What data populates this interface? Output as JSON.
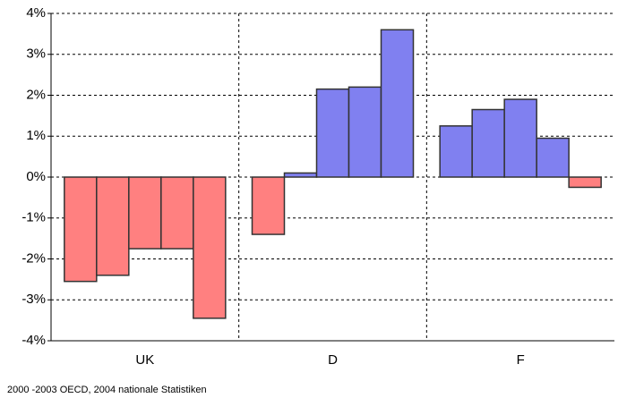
{
  "chart_data": {
    "type": "grouped-bar",
    "groups": [
      {
        "label": "UK",
        "values": [
          -2.55,
          -2.4,
          -1.75,
          -1.75,
          -3.45
        ]
      },
      {
        "label": "D",
        "values": [
          -1.4,
          0.1,
          2.15,
          2.2,
          3.6
        ]
      },
      {
        "label": "F",
        "values": [
          1.25,
          1.65,
          1.9,
          0.95,
          -0.25
        ]
      }
    ],
    "positive_color": "#8080f0",
    "negative_color": "#ff8080",
    "ylim": [
      -4,
      4
    ],
    "yticks": [
      {
        "value": -4,
        "label": "-4%"
      },
      {
        "value": -3,
        "label": "-3%"
      },
      {
        "value": -2,
        "label": "-2%"
      },
      {
        "value": -1,
        "label": "-1%"
      },
      {
        "value": 0,
        "label": "0%"
      },
      {
        "value": 1,
        "label": "1%"
      },
      {
        "value": 2,
        "label": "2%"
      },
      {
        "value": 3,
        "label": "3%"
      },
      {
        "value": 4,
        "label": "4%"
      }
    ],
    "grid": true,
    "source": "2000 -2003 OECD, 2004 nationale Statistiken"
  }
}
